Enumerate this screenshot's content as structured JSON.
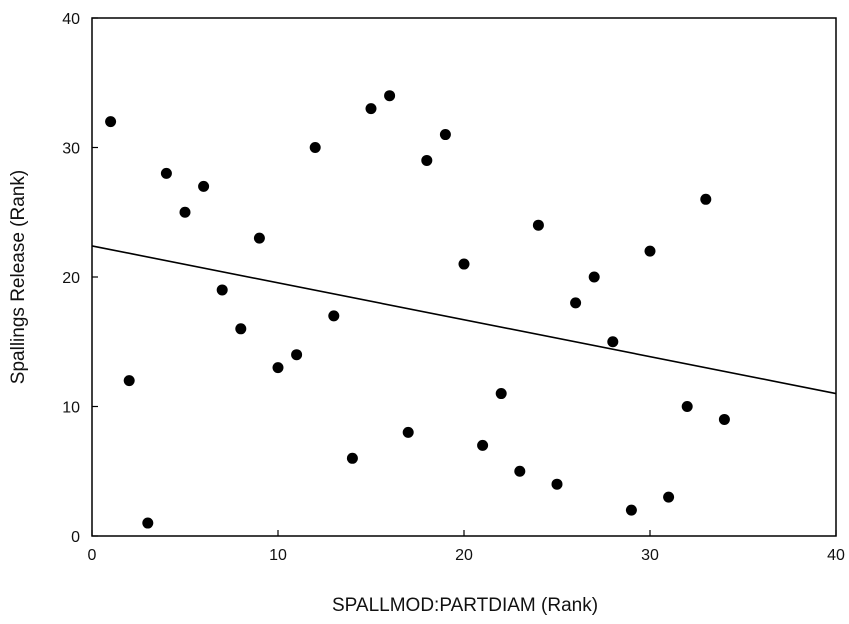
{
  "chart_data": {
    "type": "scatter",
    "title": "",
    "xlabel": "SPALLMOD:PARTDIAM (Rank)",
    "ylabel": "Spallings Release (Rank)",
    "xlim": [
      0,
      40
    ],
    "ylim": [
      0,
      40
    ],
    "xticks": [
      0,
      10,
      20,
      30,
      40
    ],
    "yticks": [
      0,
      10,
      20,
      30,
      40
    ],
    "grid": false,
    "legend": "none",
    "marker_color": "#000000",
    "line_color": "#000000",
    "series": [
      {
        "points": [
          [
            1,
            32
          ],
          [
            2,
            12
          ],
          [
            3,
            1
          ],
          [
            4,
            28
          ],
          [
            5,
            25
          ],
          [
            6,
            27
          ],
          [
            7,
            19
          ],
          [
            8,
            16
          ],
          [
            9,
            23
          ],
          [
            10,
            13
          ],
          [
            11,
            14
          ],
          [
            12,
            30
          ],
          [
            13,
            17
          ],
          [
            14,
            6
          ],
          [
            15,
            33
          ],
          [
            16,
            34
          ],
          [
            17,
            8
          ],
          [
            18,
            29
          ],
          [
            19,
            31
          ],
          [
            20,
            21
          ],
          [
            21,
            7
          ],
          [
            22,
            11
          ],
          [
            23,
            5
          ],
          [
            24,
            24
          ],
          [
            25,
            4
          ],
          [
            26,
            18
          ],
          [
            27,
            20
          ],
          [
            28,
            15
          ],
          [
            29,
            2
          ],
          [
            30,
            22
          ],
          [
            31,
            3
          ],
          [
            32,
            10
          ],
          [
            33,
            26
          ],
          [
            34,
            9
          ]
        ]
      }
    ],
    "fit_line": {
      "x": [
        0,
        40
      ],
      "y": [
        22.4,
        11.0
      ]
    }
  }
}
